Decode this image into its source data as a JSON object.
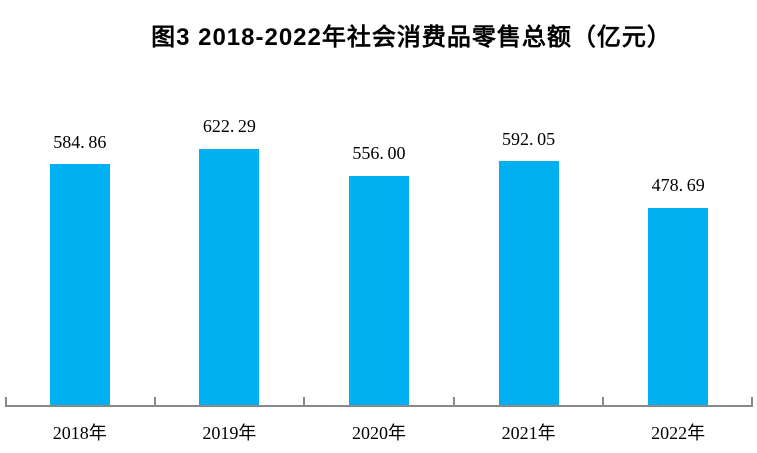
{
  "chart_data": {
    "type": "bar",
    "title": "图3  2018-2022年社会消费品零售总额（亿元）",
    "categories": [
      "2018年",
      "2019年",
      "2020年",
      "2021年",
      "2022年"
    ],
    "values": [
      584.86,
      622.29,
      556.0,
      592.05,
      478.69
    ],
    "labels": [
      "584.86",
      "622.29",
      "556.00",
      "592.05",
      "478.69"
    ],
    "xlabel": "",
    "ylabel": "",
    "ylim": [
      0,
      700
    ],
    "grid": false,
    "legend": "none",
    "bar_color": "#00B0F0",
    "axis_color": "#898989",
    "label_color": "#000000",
    "background_color": "#FFFFFF"
  }
}
